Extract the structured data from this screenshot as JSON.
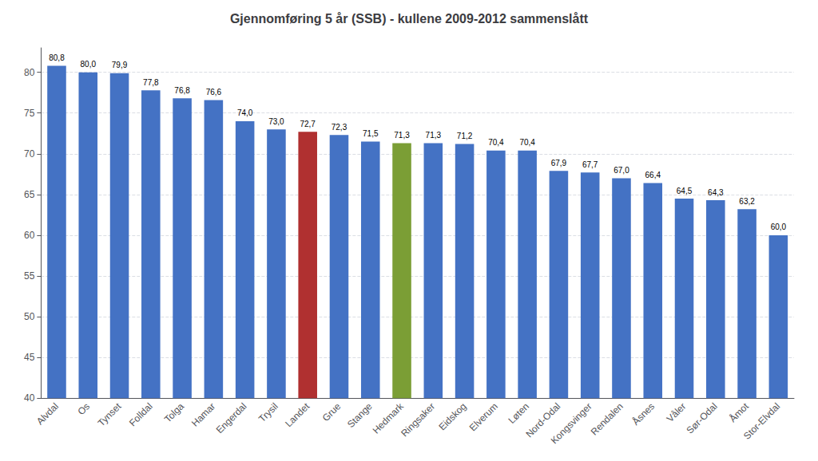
{
  "chart_data": {
    "type": "bar",
    "title": "Gjennomføring 5 år (SSB) - kullene 2009-2012 sammenslått",
    "categories": [
      "Alvdal",
      "Os",
      "Tynset",
      "Folldal",
      "Tolga",
      "Hamar",
      "Engerdal",
      "Trysil",
      "Landet",
      "Grue",
      "Stange",
      "Hedmark",
      "Ringsaker",
      "Eidskog",
      "Elverum",
      "Løten",
      "Nord-Odal",
      "Kongsvinger",
      "Rendalen",
      "Åsnes",
      "Våler",
      "Sør-Odal",
      "Åmot",
      "Stor-Elvdal"
    ],
    "values": [
      80.8,
      80.0,
      79.9,
      77.8,
      76.8,
      76.6,
      74.0,
      73.0,
      72.7,
      72.3,
      71.5,
      71.3,
      71.3,
      71.2,
      70.4,
      70.4,
      67.9,
      67.7,
      67.0,
      66.4,
      64.5,
      64.3,
      63.2,
      60.0
    ],
    "value_labels": [
      "80,8",
      "80,0",
      "79,9",
      "77,8",
      "76,8",
      "76,6",
      "74,0",
      "73,0",
      "72,7",
      "72,3",
      "71,5",
      "71,3",
      "71,3",
      "71,2",
      "70,4",
      "70,4",
      "67,9",
      "67,7",
      "67,0",
      "66,4",
      "64,5",
      "64,3",
      "63,2",
      "60,0"
    ],
    "colors": [
      "#4472C4",
      "#4472C4",
      "#4472C4",
      "#4472C4",
      "#4472C4",
      "#4472C4",
      "#4472C4",
      "#4472C4",
      "#B03030",
      "#4472C4",
      "#4472C4",
      "#7B9E35",
      "#4472C4",
      "#4472C4",
      "#4472C4",
      "#4472C4",
      "#4472C4",
      "#4472C4",
      "#4472C4",
      "#4472C4",
      "#4472C4",
      "#4472C4",
      "#4472C4",
      "#4472C4"
    ],
    "ylim": [
      40,
      83
    ],
    "yticks": [
      40,
      45,
      50,
      55,
      60,
      65,
      70,
      75,
      80
    ],
    "grid": true,
    "data_labels": true
  }
}
